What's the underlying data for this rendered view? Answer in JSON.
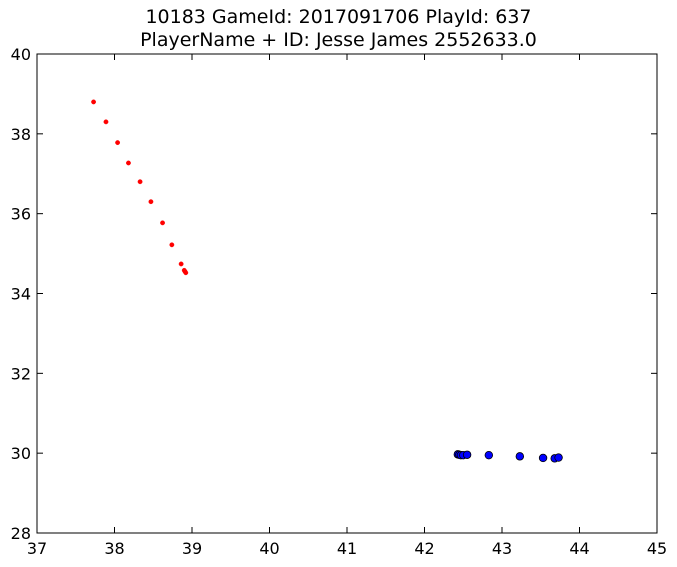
{
  "chart_data": {
    "type": "scatter",
    "title_lines": [
      "10183 GameId: 2017091706 PlayId: 637",
      "PlayerName + ID: Jesse James 2552633.0"
    ],
    "xlabel": "",
    "ylabel": "",
    "xlim": [
      37,
      45
    ],
    "ylim": [
      28,
      40
    ],
    "x_ticks": [
      "37",
      "38",
      "39",
      "40",
      "41",
      "42",
      "43",
      "44",
      "45"
    ],
    "y_ticks": [
      "28",
      "30",
      "32",
      "34",
      "36",
      "38",
      "40"
    ],
    "grid": false,
    "legend": "none",
    "series": [
      {
        "color": "#ff0000",
        "marker": "small-dot",
        "points": [
          [
            37.73,
            38.8
          ],
          [
            37.89,
            38.3
          ],
          [
            38.04,
            37.78
          ],
          [
            38.18,
            37.27
          ],
          [
            38.33,
            36.8
          ],
          [
            38.47,
            36.3
          ],
          [
            38.62,
            35.77
          ],
          [
            38.74,
            35.22
          ],
          [
            38.86,
            34.74
          ],
          [
            38.9,
            34.58
          ],
          [
            38.91,
            34.55
          ],
          [
            38.92,
            34.52
          ]
        ]
      },
      {
        "color": "#0000ff",
        "marker": "circle",
        "points": [
          [
            42.43,
            29.97
          ],
          [
            42.45,
            29.96
          ],
          [
            42.47,
            29.95
          ],
          [
            42.5,
            29.95
          ],
          [
            42.55,
            29.96
          ],
          [
            42.83,
            29.95
          ],
          [
            43.23,
            29.92
          ],
          [
            43.53,
            29.88
          ],
          [
            43.68,
            29.87
          ],
          [
            43.73,
            29.89
          ]
        ]
      }
    ]
  }
}
